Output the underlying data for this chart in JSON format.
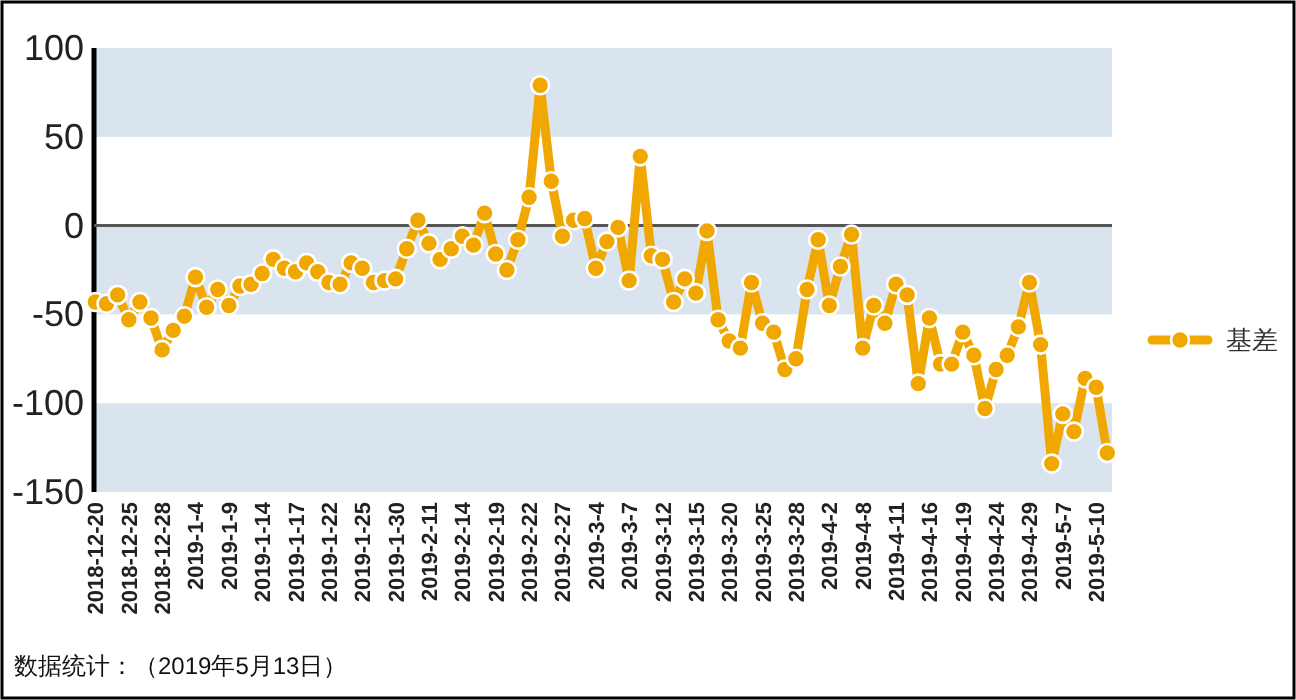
{
  "chart_data": {
    "type": "line",
    "categories": [
      "2018-12-20",
      null,
      null,
      "2018-12-25",
      null,
      null,
      "2018-12-28",
      null,
      null,
      "2019-1-4",
      null,
      null,
      "2019-1-9",
      null,
      null,
      "2019-1-14",
      null,
      null,
      "2019-1-17",
      null,
      null,
      "2019-1-22",
      null,
      null,
      "2019-1-25",
      null,
      null,
      "2019-1-30",
      null,
      null,
      "2019-2-11",
      null,
      null,
      "2019-2-14",
      null,
      null,
      "2019-2-19",
      null,
      null,
      "2019-2-22",
      null,
      null,
      "2019-2-27",
      null,
      null,
      "2019-3-4",
      null,
      null,
      "2019-3-7",
      null,
      null,
      "2019-3-12",
      null,
      null,
      "2019-3-15",
      null,
      null,
      "2019-3-20",
      null,
      null,
      "2019-3-25",
      null,
      null,
      "2019-3-28",
      null,
      null,
      "2019-4-2",
      null,
      null,
      "2019-4-8",
      null,
      null,
      "2019-4-11",
      null,
      null,
      "2019-4-16",
      null,
      null,
      "2019-4-19",
      null,
      null,
      "2019-4-24",
      null,
      null,
      "2019-4-29",
      null,
      null,
      "2019-5-7",
      null,
      null,
      "2019-5-10",
      null
    ],
    "series": [
      {
        "name": "基差",
        "color": "#f0a800",
        "values": [
          -43,
          -44,
          -39,
          -53,
          -43,
          -52,
          -70,
          -59,
          -51,
          -29,
          -46,
          -36,
          -45,
          -34,
          -33,
          -27,
          -19,
          -24,
          -26,
          -21,
          -26,
          -32,
          -33,
          -21,
          -24,
          -32,
          -31,
          -30,
          -13,
          3,
          -10,
          -19,
          -13,
          -6,
          -11,
          7,
          -16,
          -25,
          -8,
          16,
          79,
          25,
          -6,
          3,
          4,
          -24,
          -9,
          -1,
          -31,
          39,
          -17,
          -19,
          -43,
          -30,
          -38,
          -3,
          -53,
          -65,
          -69,
          -32,
          -55,
          -60,
          -81,
          -75,
          -36,
          -8,
          -45,
          -23,
          -5,
          -69,
          -45,
          -55,
          -33,
          -39,
          -89,
          -52,
          -78,
          -78,
          -60,
          -73,
          -103,
          -81,
          -73,
          -57,
          -32,
          -67,
          -134,
          -106,
          -116,
          -86,
          -91,
          -128
        ]
      }
    ],
    "ylim": [
      -150,
      100
    ],
    "yticks": [
      -150,
      -100,
      -50,
      0,
      50,
      100
    ],
    "bands": [
      {
        "axis": "y",
        "from": 50,
        "to": 100,
        "color": "#dae4ef"
      },
      {
        "axis": "y",
        "from": -50,
        "to": 0,
        "color": "#dae4ef"
      },
      {
        "axis": "y",
        "from": -150,
        "to": -100,
        "color": "#dae4ef"
      }
    ],
    "legend": "right",
    "marker": "circle",
    "ref_lines": [
      {
        "axis": "y",
        "value": 0
      }
    ],
    "annotations": [
      "数据统计：（2019年5月13日）"
    ]
  }
}
